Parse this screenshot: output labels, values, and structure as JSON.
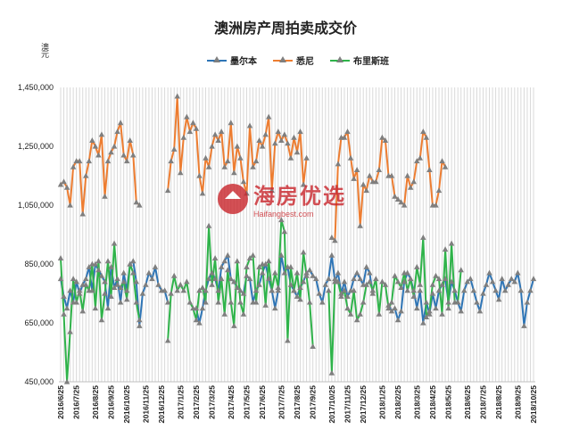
{
  "chart_data": {
    "type": "line",
    "title": "澳洲房产周拍卖成交价",
    "ylabel": "澳元",
    "ylim": [
      450000,
      1450000
    ],
    "yticks": [
      "450,000",
      "650,000",
      "850,000",
      "1,050,000",
      "1,250,000",
      "1,450,000"
    ],
    "grid": "vertical",
    "legend_position": "top",
    "x_tick_labels": [
      "2016/6/25",
      "2016/7/25",
      "2016/8/25",
      "2016/9/25",
      "2016/10/25",
      "2016/11/25",
      "2016/12/25",
      "2017/1/25",
      "2017/2/25",
      "2017/3/25",
      "2017/4/25",
      "2017/5/25",
      "2017/6/25",
      "2017/7/25",
      "2017/8/25",
      "2017/9/25",
      "2017/10/25",
      "2017/11/25",
      "2017/12/25",
      "2018/1/25",
      "2018/2/25",
      "2018/3/25",
      "2018/4/25",
      "2018/5/25",
      "2018/6/25",
      "2018/7/25",
      "2018/8/25",
      "2018/9/25",
      "2018/10/25"
    ],
    "series": [
      {
        "name": "墨尔本",
        "color": "#2e75b6",
        "values": [
          800000,
          740000,
          700000,
          760000,
          720000,
          790000,
          750000,
          780000,
          800000,
          840000,
          760000,
          850000,
          830000,
          810000,
          790000,
          700000,
          840000,
          770000,
          800000,
          720000,
          820000,
          760000,
          850000,
          860000,
          790000,
          640000,
          750000,
          780000,
          820000,
          800000,
          840000,
          780000,
          760000,
          760000,
          720000,
          null,
          null,
          null,
          null,
          null,
          null,
          null,
          null,
          700000,
          650000,
          700000,
          760000,
          800000,
          820000,
          800000,
          760000,
          840000,
          860000,
          880000,
          800000,
          790000,
          770000,
          760000,
          750000,
          810000,
          800000,
          720000,
          760000,
          780000,
          820000,
          850000,
          800000,
          760000,
          700000,
          760000,
          880000,
          820000,
          840000,
          780000,
          760000,
          740000,
          770000,
          790000,
          820000,
          830000,
          810000,
          800000,
          750000,
          720000,
          780000,
          800000,
          880000,
          790000,
          820000,
          750000,
          790000,
          740000,
          760000,
          800000,
          820000,
          800000,
          780000,
          840000,
          820000,
          750000,
          null,
          null,
          null,
          null,
          710000,
          690000,
          700000,
          660000,
          690000,
          790000,
          820000,
          800000,
          760000,
          700000,
          760000,
          650000,
          720000,
          680000,
          750000,
          700000,
          760000,
          780000,
          800000,
          720000,
          790000,
          760000,
          720000,
          690000,
          760000,
          790000,
          800000,
          760000,
          720000,
          690000,
          750000,
          780000,
          820000,
          790000,
          760000,
          730000,
          800000,
          760000,
          780000,
          800000,
          790000,
          820000,
          760000,
          640000,
          720000,
          760000,
          800000
        ]
      },
      {
        "name": "悉尼",
        "color": "#ed7d31",
        "values": [
          1120000,
          1130000,
          1110000,
          1050000,
          1180000,
          1200000,
          1200000,
          1020000,
          1150000,
          1200000,
          1270000,
          1250000,
          1220000,
          1290000,
          1080000,
          1200000,
          1230000,
          1250000,
          1300000,
          1330000,
          1220000,
          1200000,
          1270000,
          1220000,
          1060000,
          1050000,
          null,
          null,
          null,
          null,
          null,
          null,
          null,
          null,
          1100000,
          1200000,
          1240000,
          1420000,
          1160000,
          1280000,
          1350000,
          1300000,
          1330000,
          1310000,
          1150000,
          1090000,
          1210000,
          1180000,
          1250000,
          1290000,
          1270000,
          1300000,
          1180000,
          1200000,
          1330000,
          1160000,
          1250000,
          1210000,
          1130000,
          1090000,
          1320000,
          1180000,
          1200000,
          1270000,
          1250000,
          1290000,
          1350000,
          1100000,
          1260000,
          1300000,
          1270000,
          1290000,
          1260000,
          1210000,
          1280000,
          1230000,
          1300000,
          1120000,
          1210000,
          null,
          null,
          null,
          null,
          null,
          null,
          null,
          940000,
          930000,
          1190000,
          1280000,
          1280000,
          1300000,
          1210000,
          1140000,
          1170000,
          980000,
          1120000,
          1100000,
          1150000,
          1130000,
          1130000,
          1170000,
          1280000,
          1270000,
          1150000,
          1150000,
          1080000,
          1070000,
          1060000,
          1050000,
          1150000,
          1110000,
          1130000,
          1200000,
          1210000,
          1300000,
          1280000,
          1170000,
          1050000,
          1050000,
          1100000,
          1200000,
          1180000
        ]
      },
      {
        "name": "布里斯班",
        "color": "#2fb34a",
        "values": [
          870000,
          680000,
          450000,
          620000,
          800000,
          720000,
          760000,
          690000,
          780000,
          760000,
          850000,
          700000,
          860000,
          660000,
          750000,
          860000,
          740000,
          920000,
          780000,
          770000,
          790000,
          730000,
          850000,
          820000,
          720000,
          660000,
          null,
          null,
          null,
          null,
          null,
          null,
          null,
          null,
          590000,
          750000,
          810000,
          760000,
          780000,
          760000,
          790000,
          720000,
          700000,
          660000,
          760000,
          770000,
          720000,
          980000,
          780000,
          870000,
          720000,
          800000,
          680000,
          830000,
          720000,
          640000,
          860000,
          720000,
          680000,
          840000,
          870000,
          880000,
          720000,
          840000,
          850000,
          710000,
          860000,
          760000,
          820000,
          770000,
          1000000,
          960000,
          590000,
          840000,
          760000,
          820000,
          730000,
          890000,
          810000,
          720000,
          570000,
          null,
          null,
          null,
          null,
          760000,
          480000,
          800000,
          790000,
          740000,
          760000,
          700000,
          680000,
          760000,
          660000,
          680000,
          720000,
          780000,
          790000,
          760000,
          800000,
          680000,
          790000,
          780000,
          700000,
          720000,
          810000,
          790000,
          770000,
          820000,
          760000,
          800000,
          740000,
          840000,
          780000,
          940000,
          670000,
          690000,
          780000,
          810000,
          800000,
          680000,
          900000,
          700000,
          920000,
          720000,
          720000,
          830000
        ]
      }
    ]
  },
  "watermark": {
    "brand_cn": "海房优选",
    "brand_en": "Haifangbest.com"
  }
}
